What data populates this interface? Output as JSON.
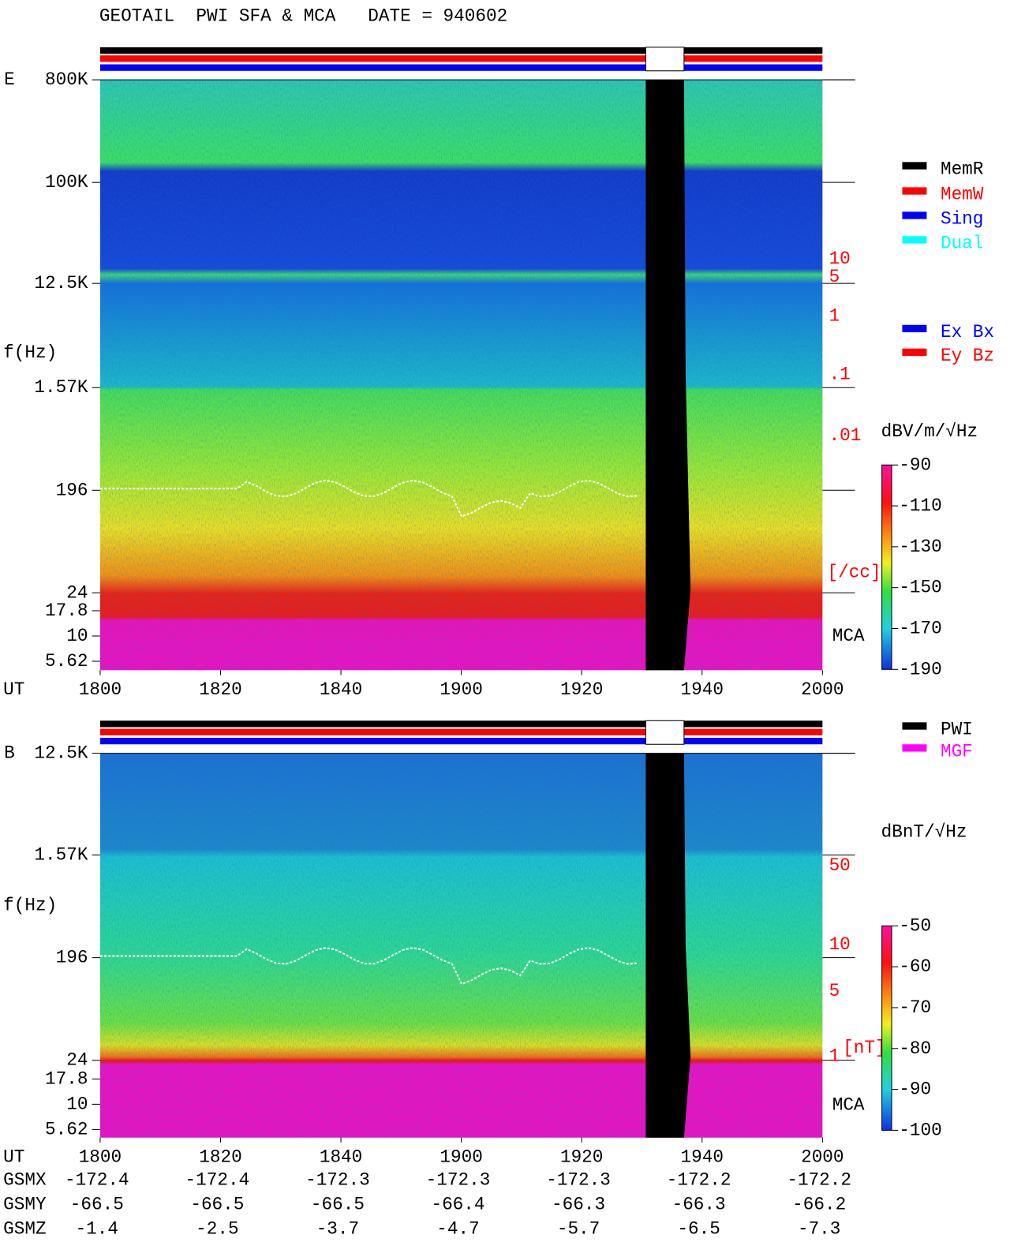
{
  "title": "GEOTAIL  PWI SFA & MCA   DATE = 940602",
  "panels": [
    {
      "label": "E",
      "y_label": "f(Hz)",
      "y_ticks": [
        "800K",
        "100K",
        "12.5K",
        "1.57K",
        "196",
        "24",
        "17.8",
        "10",
        "5.62"
      ],
      "x_label": "UT",
      "x_ticks": [
        "1800",
        "1820",
        "1840",
        "1900",
        "1920",
        "1940",
        "2000"
      ],
      "legend": [
        {
          "name": "MemR",
          "color": "#000000"
        },
        {
          "name": "MemW",
          "color": "#ff0000"
        },
        {
          "name": "Sing",
          "color": "#0000ff"
        },
        {
          "name": "Dual",
          "color": "#00ffff"
        }
      ],
      "legend2": [
        {
          "name": "Ex Bx",
          "color": "#0000ff"
        },
        {
          "name": "Ey Bz",
          "color": "#ff0000"
        }
      ],
      "scale_labels": [
        "10",
        "5",
        "1",
        ".1",
        ".01",
        "[/cc]"
      ],
      "band_label": "MCA",
      "colorbar_unit": "dBV/m/√Hz",
      "colorbar_ticks": [
        -90,
        -110,
        -130,
        -150,
        -170,
        -190
      ]
    },
    {
      "label": "B",
      "y_label": "f(Hz)",
      "y_ticks": [
        "12.5K",
        "1.57K",
        "196",
        "24",
        "17.8",
        "10",
        "5.62"
      ],
      "x_label": "UT",
      "x_ticks": [
        "1800",
        "1820",
        "1840",
        "1900",
        "1920",
        "1940",
        "2000"
      ],
      "legend": [
        {
          "name": "PWI",
          "color": "#000000"
        },
        {
          "name": "MGF",
          "color": "#ff00ff"
        }
      ],
      "scale_labels": [
        "50",
        "10",
        "5",
        "1",
        "[nT]"
      ],
      "band_label": "MCA",
      "colorbar_unit": "dBnT/√Hz",
      "colorbar_ticks": [
        -50,
        -60,
        -70,
        -80,
        -90,
        -100
      ]
    }
  ],
  "coordinates": {
    "rows": [
      {
        "label": "GSMX",
        "values": [
          -172.4,
          -172.4,
          -172.3,
          -172.3,
          -172.3,
          -172.2,
          -172.2
        ]
      },
      {
        "label": "GSMY",
        "values": [
          -66.5,
          -66.5,
          -66.5,
          -66.4,
          -66.3,
          -66.3,
          -66.2
        ]
      },
      {
        "label": "GSMZ",
        "values": [
          -1.4,
          -2.5,
          -3.7,
          -4.7,
          -5.7,
          -6.5,
          -7.3
        ]
      }
    ]
  }
}
